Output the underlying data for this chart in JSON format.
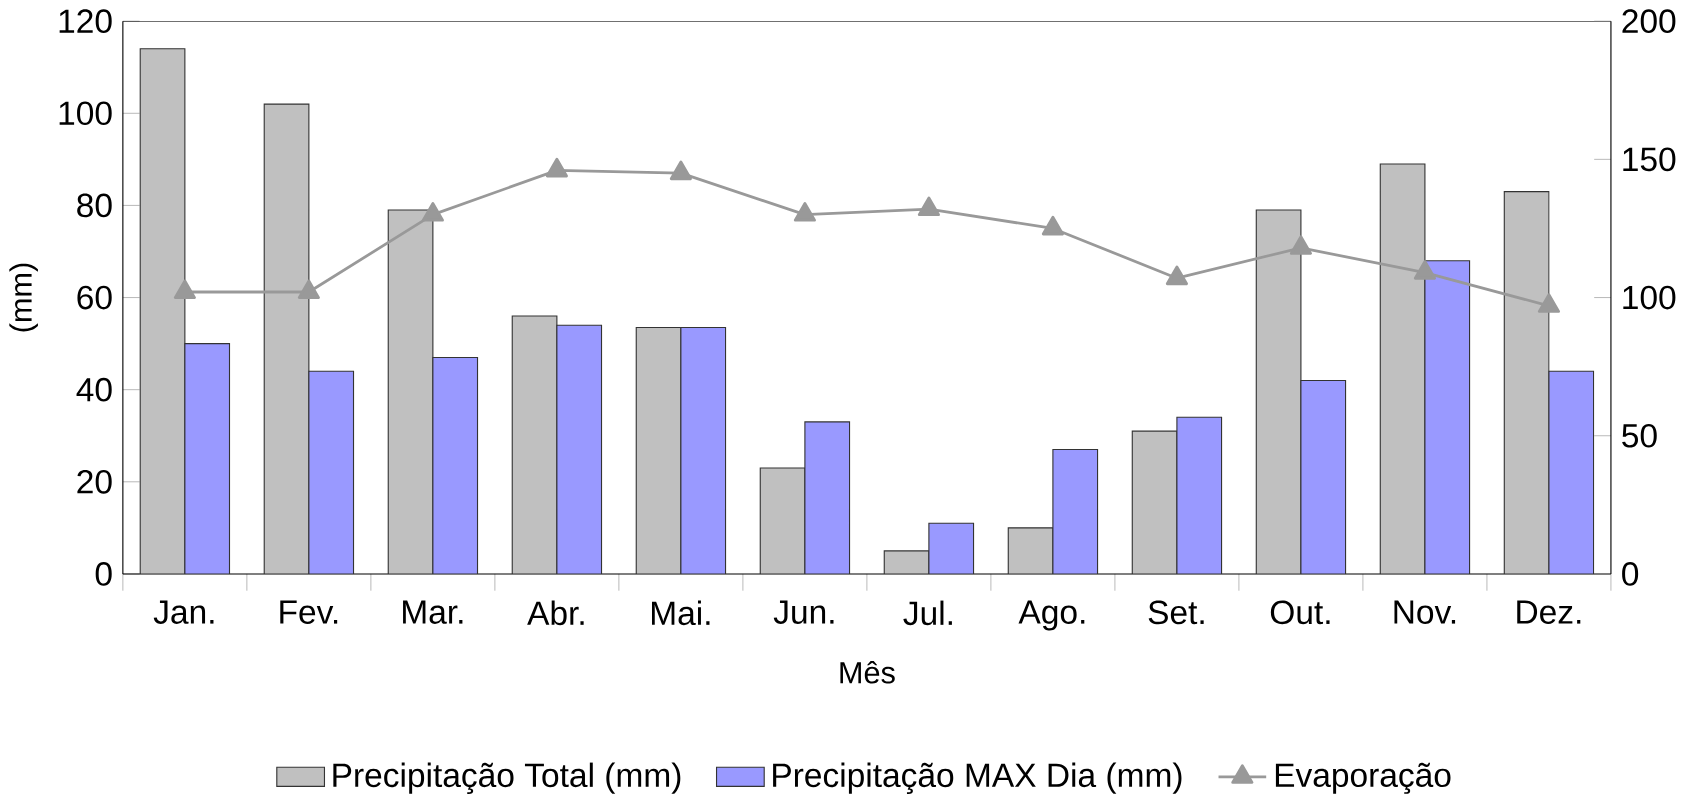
{
  "chart_data": {
    "type": "bar",
    "xlabel": "Mês",
    "ylabel": "(mm)",
    "categories": [
      "Jan.",
      "Fev.",
      "Mar.",
      "Abr.",
      "Mai.",
      "Jun.",
      "Jul.",
      "Ago.",
      "Set.",
      "Out.",
      "Nov.",
      "Dez."
    ],
    "series": [
      {
        "name": "Precipitação Total (mm)",
        "color": "#c0c0c0",
        "values": [
          114,
          102,
          79,
          56,
          53.5,
          23,
          5,
          10,
          31,
          79,
          89,
          83
        ]
      },
      {
        "name": "Precipitação MAX Dia (mm)",
        "color": "#9999ff",
        "values": [
          50,
          44,
          47,
          54,
          53.5,
          33,
          11,
          27,
          34,
          42,
          68,
          44
        ]
      },
      {
        "name": "Evaporação",
        "type": "line",
        "axis": "y2",
        "color": "#999999",
        "marker": "triangle",
        "values": [
          102,
          102,
          130,
          146,
          145,
          130,
          132,
          125,
          107,
          118,
          109,
          97
        ]
      }
    ],
    "ylim": [
      0,
      120
    ],
    "yticks": [
      0,
      20,
      40,
      60,
      80,
      100,
      120
    ],
    "y2lim": [
      0,
      200
    ],
    "y2ticks": [
      0,
      50,
      100,
      150,
      200
    ],
    "grid": false,
    "legend": "bottom"
  }
}
